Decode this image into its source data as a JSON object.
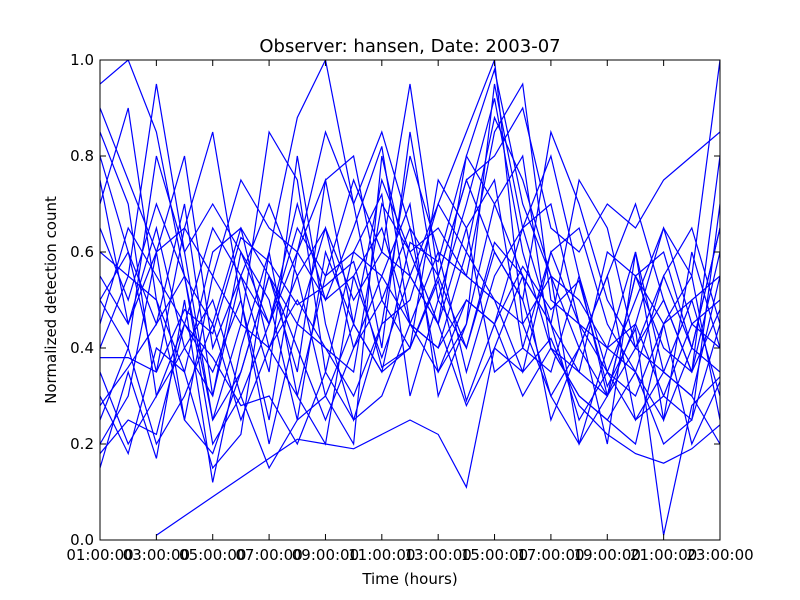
{
  "chart_data": {
    "type": "line",
    "title": "Observer: hansen, Date: 2003-07",
    "xlabel": "Time (hours)",
    "ylabel": "Normalized detection count",
    "xlim": [
      1,
      23
    ],
    "ylim": [
      0,
      1
    ],
    "grid": false,
    "legend": "none",
    "line_color": "#0000ff",
    "x_ticks": [
      {
        "value": 1,
        "label": "01:00:00"
      },
      {
        "value": 3,
        "label": "03:00:00"
      },
      {
        "value": 5,
        "label": "05:00:00"
      },
      {
        "value": 7,
        "label": "07:00:00"
      },
      {
        "value": 9,
        "label": "09:00:00"
      },
      {
        "value": 11,
        "label": "11:00:00"
      },
      {
        "value": 13,
        "label": "13:00:00"
      },
      {
        "value": 15,
        "label": "15:00:00"
      },
      {
        "value": 17,
        "label": "17:00:00"
      },
      {
        "value": 19,
        "label": "19:00:00"
      },
      {
        "value": 21,
        "label": "21:00:00"
      },
      {
        "value": 23,
        "label": "23:00:00"
      }
    ],
    "y_ticks": [
      {
        "value": 0,
        "label": "0.0"
      },
      {
        "value": 0.2,
        "label": "0.2"
      },
      {
        "value": 0.4,
        "label": "0.4"
      },
      {
        "value": 0.6,
        "label": "0.6"
      },
      {
        "value": 0.8,
        "label": "0.8"
      },
      {
        "value": 1.0,
        "label": "1.0"
      }
    ],
    "x": [
      1,
      2,
      3,
      4,
      5,
      6,
      7,
      8,
      9,
      10,
      11,
      12,
      13,
      14,
      15,
      16,
      17,
      18,
      19,
      20,
      21,
      22,
      23
    ],
    "series": [
      {
        "values": [
          0.95,
          1.0,
          0.85,
          0.55,
          0.2,
          0.3,
          0.45,
          0.6,
          0.75,
          0.45,
          0.35,
          0.62,
          0.58,
          0.8,
          0.98,
          0.7,
          0.55,
          0.4,
          0.3,
          0.45,
          0.65,
          0.55,
          1.0
        ]
      },
      {
        "values": [
          0.15,
          0.35,
          0.17,
          0.5,
          0.12,
          0.4,
          0.6,
          0.88,
          1.0,
          0.7,
          0.4,
          0.85,
          0.5,
          0.7,
          0.92,
          0.6,
          0.4,
          0.3,
          0.25,
          0.35,
          0.55,
          0.4,
          0.65
        ]
      },
      {
        "values": [
          0.5,
          0.6,
          0.45,
          0.7,
          0.3,
          0.55,
          0.45,
          0.7,
          0.5,
          0.65,
          0.82,
          0.45,
          0.4,
          0.6,
          0.88,
          0.75,
          0.55,
          0.5,
          0.4,
          0.45,
          0.3,
          0.25,
          0.45
        ]
      },
      {
        "values": [
          0.8,
          0.6,
          0.35,
          0.65,
          0.85,
          0.5,
          0.2,
          0.45,
          0.65,
          0.4,
          0.55,
          0.7,
          0.3,
          0.45,
          0.95,
          0.65,
          0.8,
          0.55,
          0.3,
          0.55,
          0.6,
          0.4,
          0.35
        ]
      },
      {
        "values": [
          0.25,
          0.4,
          0.2,
          0.3,
          0.45,
          0.25,
          0.4,
          0.3,
          0.55,
          0.6,
          0.72,
          0.3,
          0.5,
          0.4,
          0.62,
          0.55,
          0.45,
          0.25,
          0.35,
          0.3,
          0.45,
          0.5,
          0.3
        ]
      },
      {
        "values": [
          0.6,
          0.55,
          0.95,
          0.6,
          0.25,
          0.35,
          0.55,
          0.45,
          0.4,
          0.35,
          0.7,
          0.6,
          0.65,
          0.55,
          0.85,
          0.95,
          0.5,
          0.45,
          0.2,
          0.6,
          0.35,
          0.3,
          0.55
        ]
      },
      {
        "values": [
          0.35,
          0.2,
          0.3,
          0.4,
          0.5,
          0.3,
          0.15,
          0.25,
          0.3,
          0.45,
          0.35,
          0.4,
          0.55,
          0.75,
          0.6,
          0.5,
          0.3,
          0.2,
          0.4,
          0.35,
          0.25,
          0.6,
          0.4
        ]
      },
      {
        "values": [
          0.7,
          0.9,
          0.5,
          0.35,
          0.6,
          0.65,
          0.4,
          0.55,
          0.3,
          0.2,
          0.8,
          0.55,
          0.7,
          0.85,
          1.0,
          0.45,
          0.3,
          0.4,
          0.55,
          0.7,
          0.5,
          0.35,
          0.8
        ]
      },
      {
        "values": [
          0.2,
          0.3,
          0.6,
          0.25,
          0.18,
          0.35,
          0.55,
          0.4,
          0.25,
          0.4,
          0.5,
          0.65,
          0.35,
          0.45,
          0.7,
          0.8,
          0.4,
          0.3,
          0.25,
          0.2,
          0.45,
          0.55,
          0.25
        ]
      },
      {
        "values": [
          0.45,
          0.65,
          0.55,
          0.45,
          0.35,
          0.5,
          0.25,
          0.6,
          0.5,
          0.55,
          0.65,
          0.45,
          0.6,
          0.35,
          0.55,
          0.65,
          0.7,
          0.45,
          0.35,
          0.25,
          0.3,
          0.45,
          0.5
        ]
      },
      {
        "values": [
          0.85,
          0.7,
          0.3,
          0.45,
          0.65,
          0.55,
          0.35,
          0.8,
          0.45,
          0.25,
          0.45,
          0.8,
          0.6,
          0.55,
          0.5,
          0.35,
          0.6,
          0.65,
          0.45,
          0.35,
          0.2,
          0.25,
          0.7
        ]
      },
      {
        "values": [
          0.3,
          0.18,
          0.4,
          0.35,
          0.15,
          0.22,
          0.6,
          0.3,
          0.2,
          0.55,
          0.38,
          0.55,
          0.45,
          0.28,
          0.4,
          0.55,
          0.25,
          0.4,
          0.55,
          0.25,
          0.35,
          0.3,
          0.2
        ]
      },
      {
        "values": [
          0.55,
          0.45,
          0.6,
          0.8,
          0.4,
          0.55,
          0.7,
          0.55,
          0.65,
          0.5,
          0.6,
          0.95,
          0.55,
          0.4,
          0.6,
          0.5,
          0.85,
          0.7,
          0.5,
          0.4,
          0.55,
          0.65,
          0.45
        ]
      },
      {
        "values": [
          0.4,
          0.55,
          0.5,
          0.25,
          0.55,
          0.45,
          0.85,
          0.75,
          0.35,
          0.6,
          0.55,
          0.45,
          0.4,
          0.5,
          0.45,
          0.65,
          0.45,
          0.35,
          0.6,
          0.55,
          0.4,
          0.35,
          0.6
        ]
      },
      {
        "values": [
          0.65,
          0.5,
          0.7,
          0.55,
          0.45,
          0.65,
          0.55,
          0.35,
          0.75,
          0.8,
          0.5,
          0.4,
          0.75,
          0.65,
          0.35,
          0.4,
          0.35,
          0.55,
          0.35,
          0.5,
          0.65,
          0.45,
          0.4
        ]
      },
      {
        "values": [
          0.9,
          0.75,
          0.6,
          0.65,
          0.55,
          0.75,
          0.65,
          0.6,
          0.85,
          0.7,
          0.85,
          0.65,
          0.55,
          0.75,
          0.8,
          0.9,
          0.65,
          0.6,
          0.7,
          0.65,
          0.75,
          0.8,
          0.85
        ]
      },
      {
        "values": [
          0.28,
          0.36,
          0.45,
          0.55,
          0.25,
          0.45,
          0.4,
          0.5,
          0.4,
          0.3,
          0.45,
          0.5,
          0.7,
          0.6,
          0.5,
          0.45,
          0.55,
          0.2,
          0.3,
          0.4,
          0.5,
          0.35,
          0.48
        ]
      },
      {
        "values": [
          0.5,
          0.4,
          0.8,
          0.6,
          0.7,
          0.6,
          0.45,
          0.65,
          0.55,
          0.75,
          0.6,
          0.55,
          0.45,
          0.8,
          0.7,
          0.55,
          0.45,
          0.75,
          0.65,
          0.4,
          0.35,
          0.5,
          0.55
        ]
      },
      {
        "values": [
          0.18,
          0.25,
          0.22,
          0.45,
          0.38,
          0.28,
          0.3,
          0.2,
          0.35,
          0.25,
          0.3,
          0.45,
          0.35,
          0.5,
          0.45,
          0.3,
          0.4,
          0.35,
          0.3,
          0.55,
          0.45,
          0.2,
          0.33
        ]
      },
      {
        "values": [
          0.75,
          0.45,
          0.65,
          0.4,
          0.3,
          0.6,
          0.5,
          0.25,
          0.6,
          0.45,
          0.75,
          0.6,
          0.45,
          0.65,
          0.75,
          0.4,
          0.6,
          0.45,
          0.4,
          0.6,
          0.25,
          0.4,
          0.65
        ]
      },
      {
        "values": [
          null,
          null,
          0.01,
          0.05,
          0.09,
          0.13,
          0.17,
          0.21,
          0.2,
          0.19,
          0.22,
          0.25,
          0.22,
          0.11,
          0.4,
          0.35,
          0.42,
          0.28,
          0.22,
          0.18,
          0.16,
          0.19,
          0.24
        ]
      },
      {
        "values": [
          0.38,
          0.38,
          0.35,
          0.48,
          0.43,
          0.63,
          0.58,
          0.49,
          0.53,
          0.58,
          0.36,
          0.4,
          0.54,
          0.29,
          0.45,
          0.57,
          0.48,
          0.54,
          0.32,
          0.44,
          0.01,
          0.28,
          0.34
        ]
      }
    ]
  }
}
